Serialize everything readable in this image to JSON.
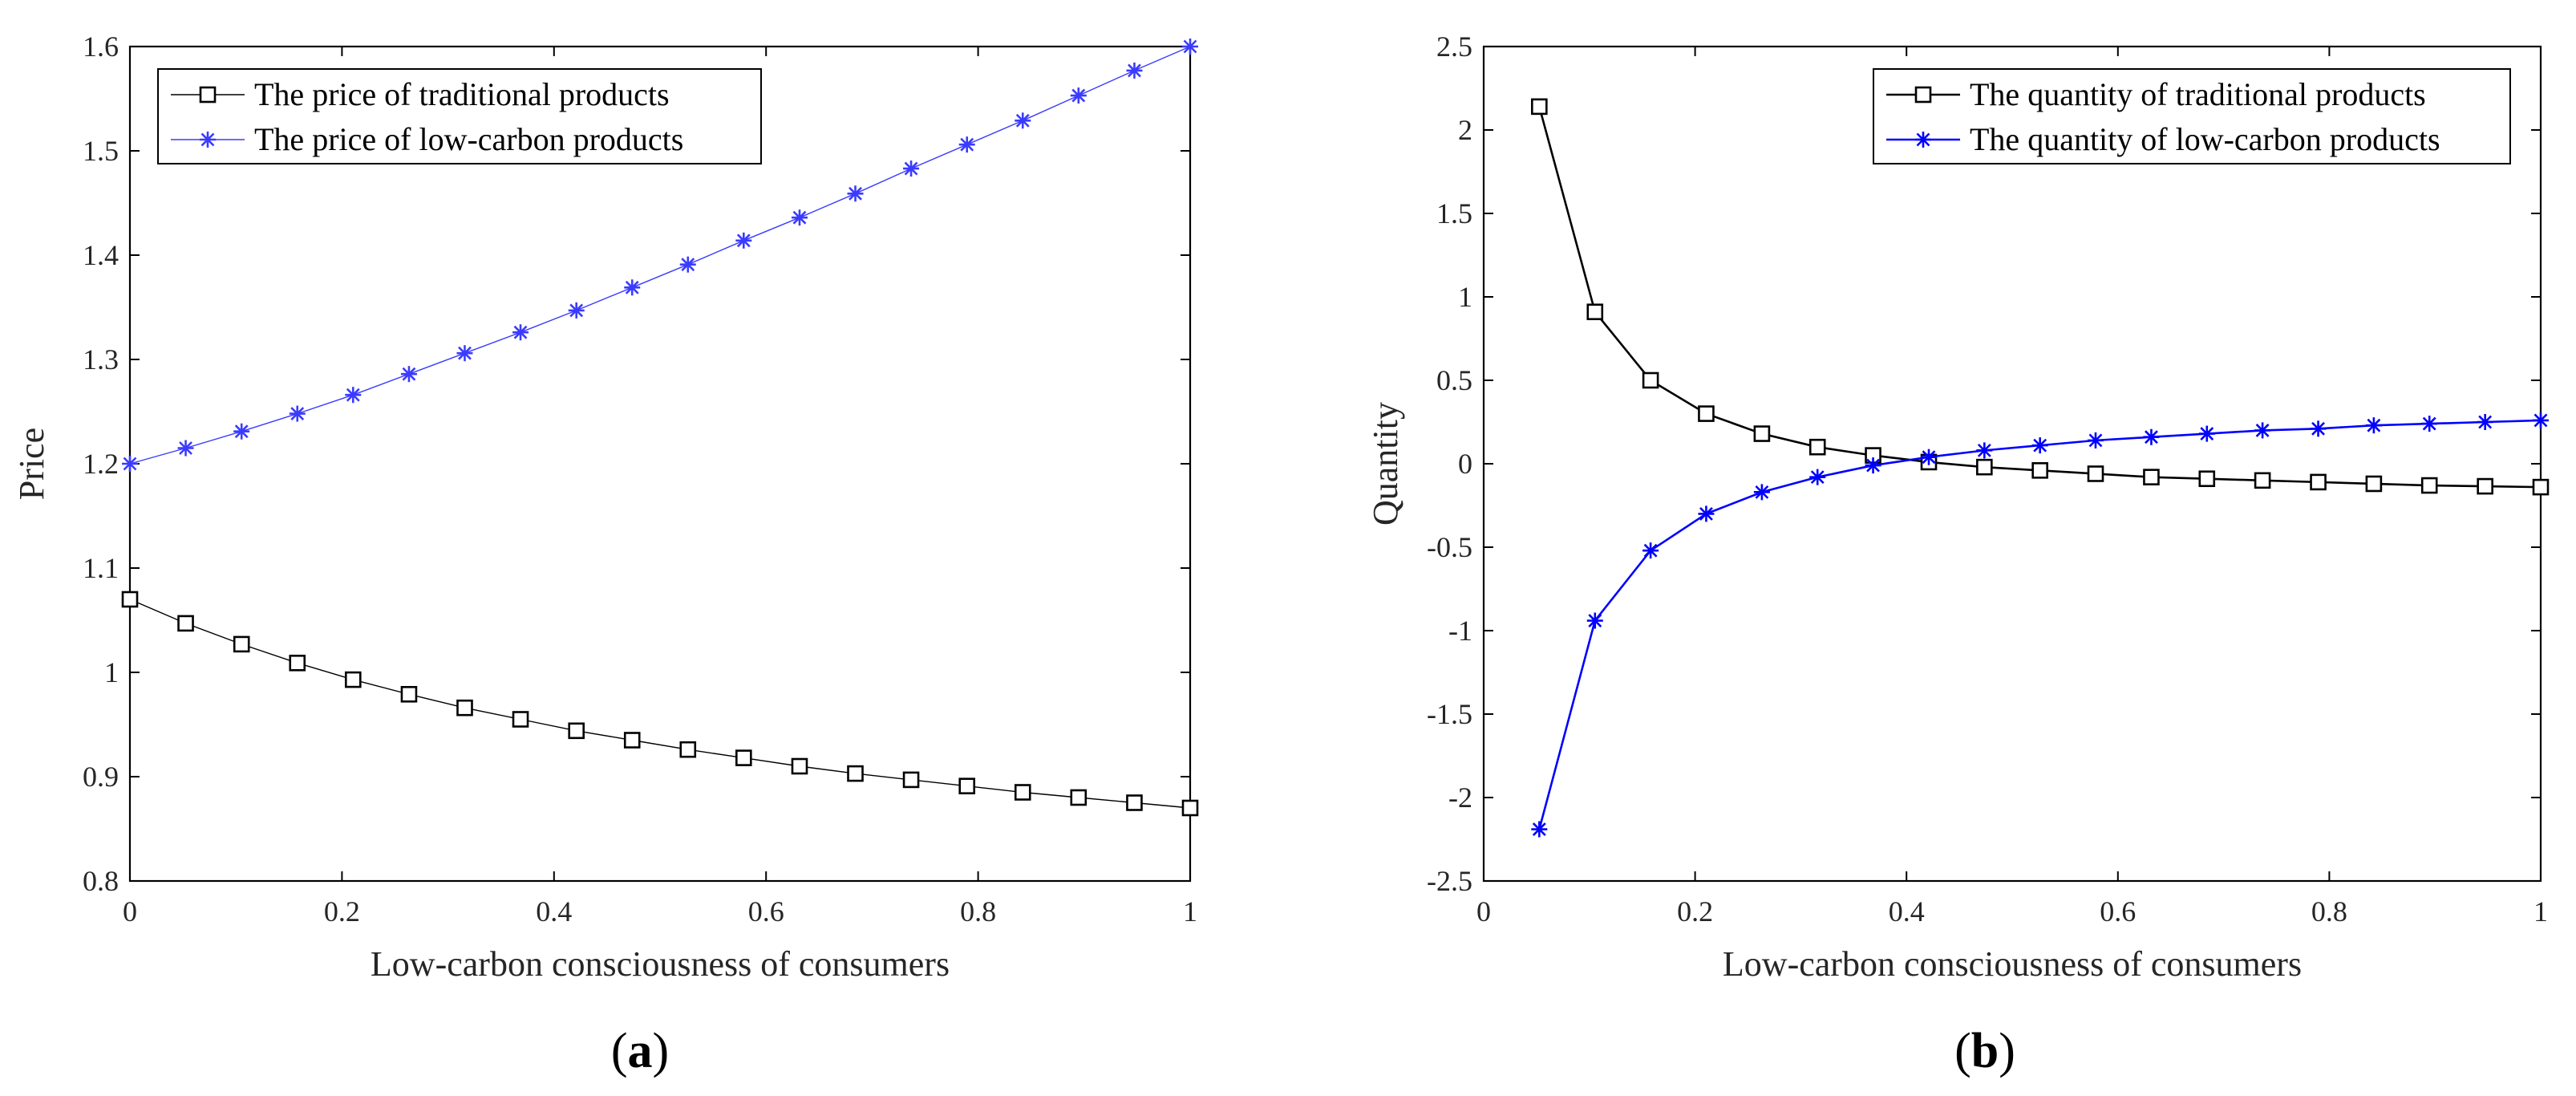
{
  "chart_data": [
    {
      "type": "line",
      "panel_label": "(a)",
      "panel_label_parts": {
        "open": "(",
        "letter": "a",
        "close": ")"
      },
      "title": "",
      "xlabel": "Low-carbon consciousness of consumers",
      "ylabel": "Price",
      "xlim": [
        0,
        1
      ],
      "ylim": [
        0.8,
        1.6
      ],
      "xticks": [
        0,
        0.2,
        0.4,
        0.6,
        0.8,
        1
      ],
      "xtick_labels": [
        "0",
        "0.2",
        "0.4",
        "0.6",
        "0.8",
        "1"
      ],
      "yticks": [
        0.8,
        0.9,
        1.0,
        1.1,
        1.2,
        1.3,
        1.4,
        1.5,
        1.6
      ],
      "ytick_labels": [
        "0.8",
        "0.9",
        "1",
        "1.1",
        "1.2",
        "1.3",
        "1.4",
        "1.5",
        "1.6"
      ],
      "grid": false,
      "legend_position": "top-left",
      "x": [
        0,
        0.0526,
        0.1053,
        0.1579,
        0.2105,
        0.2632,
        0.3158,
        0.3684,
        0.4211,
        0.4737,
        0.5263,
        0.5789,
        0.6316,
        0.6842,
        0.7368,
        0.7895,
        0.8421,
        0.8947,
        0.9474,
        1.0
      ],
      "series": [
        {
          "name": "The price of traditional products",
          "color": "#000000",
          "marker": "square",
          "line_width": 1.4,
          "values": [
            1.07,
            1.047,
            1.027,
            1.009,
            0.993,
            0.979,
            0.966,
            0.955,
            0.944,
            0.935,
            0.926,
            0.918,
            0.91,
            0.903,
            0.897,
            0.891,
            0.885,
            0.88,
            0.875,
            0.87
          ]
        },
        {
          "name": "The price of low-carbon products",
          "color": "#3b3bff",
          "marker": "asterisk",
          "line_width": 1.4,
          "values": [
            1.2,
            1.215,
            1.231,
            1.248,
            1.266,
            1.286,
            1.306,
            1.326,
            1.347,
            1.369,
            1.391,
            1.414,
            1.436,
            1.459,
            1.483,
            1.506,
            1.529,
            1.553,
            1.577,
            1.6
          ]
        }
      ]
    },
    {
      "type": "line",
      "panel_label": "(b)",
      "panel_label_parts": {
        "open": "(",
        "letter": "b",
        "close": ")"
      },
      "title": "",
      "xlabel": "Low-carbon consciousness of consumers",
      "ylabel": "Quantity",
      "xlim": [
        0,
        1
      ],
      "ylim": [
        -2.5,
        2.5
      ],
      "xticks": [
        0,
        0.2,
        0.4,
        0.6,
        0.8,
        1
      ],
      "xtick_labels": [
        "0",
        "0.2",
        "0.4",
        "0.6",
        "0.8",
        "1"
      ],
      "yticks": [
        -2.5,
        -2,
        -1.5,
        -1,
        -0.5,
        0,
        0.5,
        1,
        1.5,
        2,
        2.5
      ],
      "ytick_labels": [
        "-2.5",
        "-2",
        "-1.5",
        "-1",
        "-0.5",
        "0",
        "0.5",
        "1",
        "1.5",
        "2",
        "2.5"
      ],
      "grid": false,
      "legend_position": "top-right",
      "x": [
        0.0526,
        0.1053,
        0.1579,
        0.2105,
        0.2632,
        0.3158,
        0.3684,
        0.4211,
        0.4737,
        0.5263,
        0.5789,
        0.6316,
        0.6842,
        0.7368,
        0.7895,
        0.8421,
        0.8947,
        0.9474,
        1.0
      ],
      "series": [
        {
          "name": "The quantity of traditional products",
          "color": "#000000",
          "marker": "square",
          "line_width": 2.6,
          "values": [
            2.14,
            0.91,
            0.5,
            0.3,
            0.18,
            0.1,
            0.05,
            0.01,
            -0.02,
            -0.04,
            -0.06,
            -0.08,
            -0.09,
            -0.1,
            -0.11,
            -0.12,
            -0.13,
            -0.135,
            -0.14
          ]
        },
        {
          "name": "The quantity of low-carbon products",
          "color": "#0000ff",
          "marker": "asterisk",
          "line_width": 2.6,
          "values": [
            -2.19,
            -0.94,
            -0.52,
            -0.3,
            -0.17,
            -0.08,
            -0.01,
            0.04,
            0.08,
            0.11,
            0.14,
            0.16,
            0.18,
            0.2,
            0.21,
            0.23,
            0.24,
            0.25,
            0.26
          ]
        }
      ]
    }
  ]
}
